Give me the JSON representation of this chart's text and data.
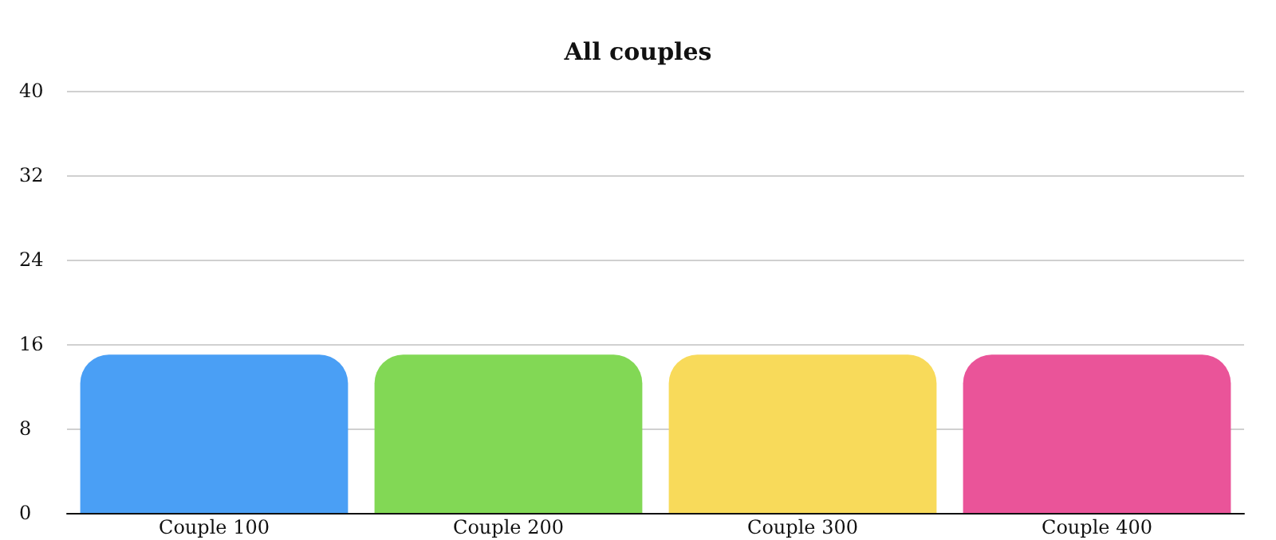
{
  "chart_data": {
    "type": "bar",
    "title": "All couples",
    "categories": [
      "Couple 100",
      "Couple 200",
      "Couple 300",
      "Couple 400"
    ],
    "values": [
      15,
      15,
      15,
      15
    ],
    "colors": [
      "#4a9ff5",
      "#82d855",
      "#f8da5a",
      "#ea5499"
    ],
    "ylim": [
      0,
      40
    ],
    "yticks": [
      0,
      8,
      16,
      24,
      32,
      40
    ],
    "grid": "y"
  }
}
